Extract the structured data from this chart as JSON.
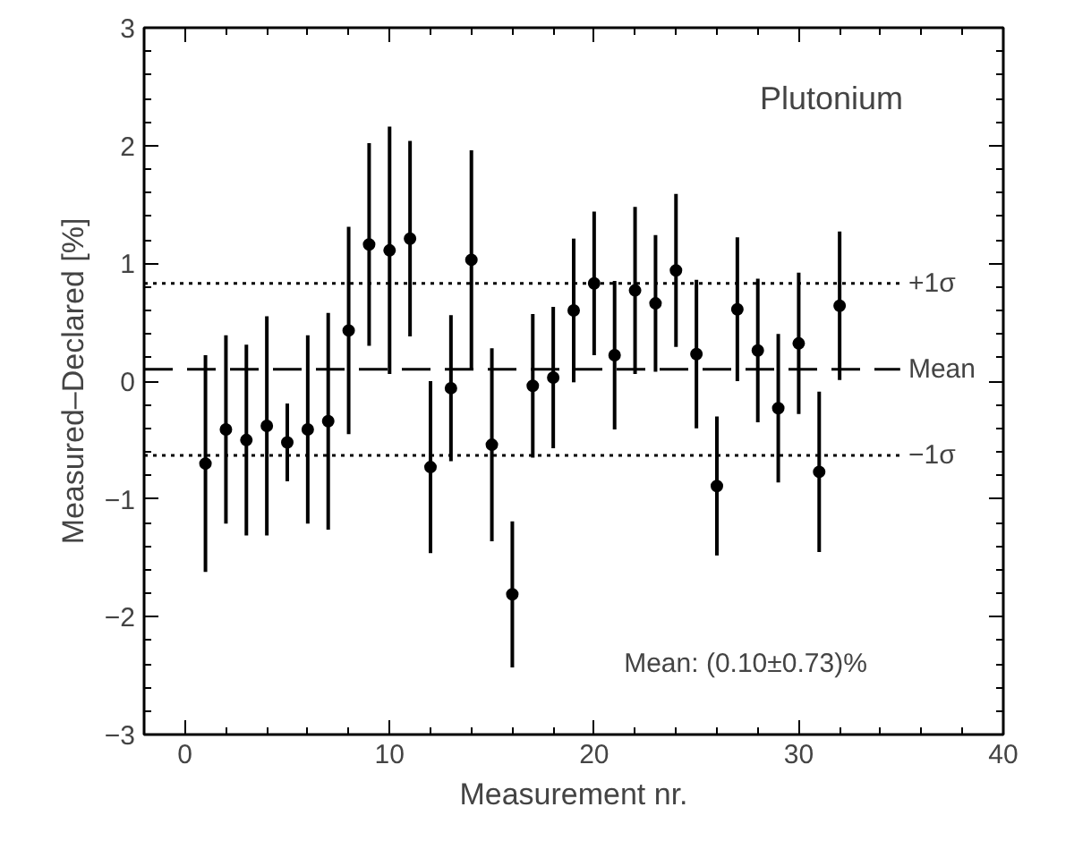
{
  "chart_data": {
    "type": "scatter",
    "xlabel": "Measurement nr.",
    "ylabel": "Measured–Declared [%]",
    "x": [
      1,
      2,
      3,
      4,
      5,
      6,
      7,
      8,
      9,
      10,
      11,
      12,
      13,
      14,
      15,
      16,
      17,
      18,
      19,
      20,
      21,
      22,
      23,
      24,
      25,
      26,
      27,
      28,
      29,
      30,
      31,
      32
    ],
    "series": [
      {
        "color": "#000000",
        "values": [
          -0.7,
          -0.41,
          -0.5,
          -0.38,
          -0.52,
          -0.41,
          -0.34,
          0.43,
          1.16,
          1.11,
          1.21,
          -0.73,
          -0.06,
          1.03,
          -0.54,
          -1.81,
          -0.04,
          0.03,
          0.6,
          0.83,
          0.22,
          0.77,
          0.66,
          0.94,
          0.23,
          -0.89,
          0.61,
          0.26,
          -0.23,
          0.32,
          -0.77,
          0.64
        ],
        "errors": [
          0.92,
          0.8,
          0.81,
          0.93,
          0.33,
          0.8,
          0.92,
          0.88,
          0.86,
          1.05,
          0.83,
          0.73,
          0.62,
          0.93,
          0.82,
          0.62,
          0.61,
          0.6,
          0.61,
          0.61,
          0.63,
          0.71,
          0.58,
          0.65,
          0.63,
          0.59,
          0.61,
          0.61,
          0.63,
          0.6,
          0.68,
          0.63
        ]
      }
    ],
    "xlim": [
      -2,
      40
    ],
    "xticks": [
      0,
      10,
      20,
      30,
      40
    ],
    "ylim": [
      -3,
      3
    ],
    "yticks": [
      {
        "value": -3,
        "label": "−3"
      },
      {
        "value": -2,
        "label": "−2"
      },
      {
        "value": -1,
        "label": "−1"
      },
      0,
      1,
      2,
      3
    ],
    "ref_lines": [
      {
        "axis": "y",
        "value": 0.83,
        "label": "+1σ",
        "line_style": "dotted"
      },
      {
        "axis": "y",
        "value": 0.1,
        "label": "Mean",
        "line_style": "dashed"
      },
      {
        "axis": "y",
        "value": -0.63,
        "label": "−1σ",
        "line_style": "dotted"
      }
    ],
    "annotations": [
      "Plutonium",
      "Mean: (0.10±0.73)%"
    ],
    "marker": "circle"
  }
}
